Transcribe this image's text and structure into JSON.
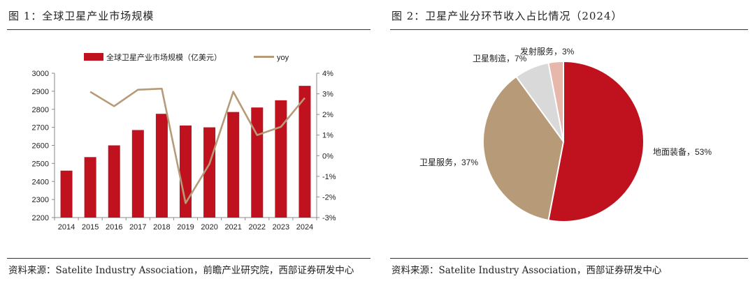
{
  "colors": {
    "bar": "#c0111f",
    "line": "#b79a78",
    "pie": [
      "#c0111f",
      "#b79a78",
      "#d9d9d9",
      "#e8b7ab"
    ]
  },
  "left": {
    "title": "图 1：全球卫星产业市场规模",
    "source": "资料来源：Satelite Industry Association，前瞻产业研究院，西部证券研发中心"
  },
  "right": {
    "title": "图 2：卫星产业分环节收入占比情况（2024）",
    "source": "资料来源：Satelite Industry Association，西部证券研发中心"
  },
  "chart_data": [
    {
      "type": "bar",
      "title": "全球卫星产业市场规模",
      "categories": [
        "2014",
        "2015",
        "2016",
        "2017",
        "2018",
        "2019",
        "2020",
        "2021",
        "2022",
        "2023",
        "2024"
      ],
      "series": [
        {
          "name": "全球卫星产业市场规模（亿美元）",
          "type": "bar",
          "axis": "left",
          "values": [
            2460,
            2535,
            2600,
            2685,
            2775,
            2710,
            2700,
            2785,
            2810,
            2850,
            2930
          ]
        },
        {
          "name": "yoy",
          "type": "line",
          "axis": "right",
          "values": [
            null,
            3.1,
            2.4,
            3.2,
            3.25,
            -2.3,
            -0.4,
            3.1,
            1.0,
            1.4,
            2.8
          ]
        }
      ],
      "y_left": {
        "min": 2200,
        "max": 3000,
        "step": 100,
        "ticks": [
          "2200",
          "2300",
          "2400",
          "2500",
          "2600",
          "2700",
          "2800",
          "2900",
          "3000"
        ]
      },
      "y_right": {
        "min": -3,
        "max": 4,
        "step": 1,
        "ticks": [
          "-3%",
          "-2%",
          "-1%",
          "0%",
          "1%",
          "2%",
          "3%",
          "4%"
        ]
      }
    },
    {
      "type": "pie",
      "title": "卫星产业分环节收入占比情况（2024）",
      "slices": [
        {
          "label": "地面装备，53%",
          "value": 53
        },
        {
          "label": "卫星服务，37%",
          "value": 37
        },
        {
          "label": "卫星制造，7%",
          "value": 7
        },
        {
          "label": "发射服务，3%",
          "value": 3
        }
      ]
    }
  ]
}
